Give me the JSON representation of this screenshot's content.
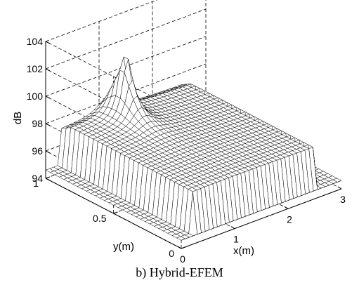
{
  "caption": "b) Hybrid-EFEM",
  "chart_data": {
    "type": "surface3d",
    "zlabel": "dB",
    "xlabel": "x(m)",
    "ylabel": "y(m)",
    "xlim": [
      0,
      3
    ],
    "ylim": [
      0,
      1
    ],
    "zlim": [
      94,
      104
    ],
    "xticks": [
      "0",
      "1",
      "2",
      "3"
    ],
    "yticks": [
      "0",
      "0.5",
      "1"
    ],
    "zticks": [
      "94",
      "96",
      "98",
      "100",
      "102",
      "104"
    ],
    "grid": true,
    "mesh_color": "#000000",
    "face_color": "#ffffff",
    "peak": {
      "x": 1.1,
      "y": 0.85,
      "z": 103.5
    },
    "plateau_level": 97.5,
    "base_level": 94.6,
    "plateau_x_range": [
      0.25,
      2.6
    ]
  }
}
